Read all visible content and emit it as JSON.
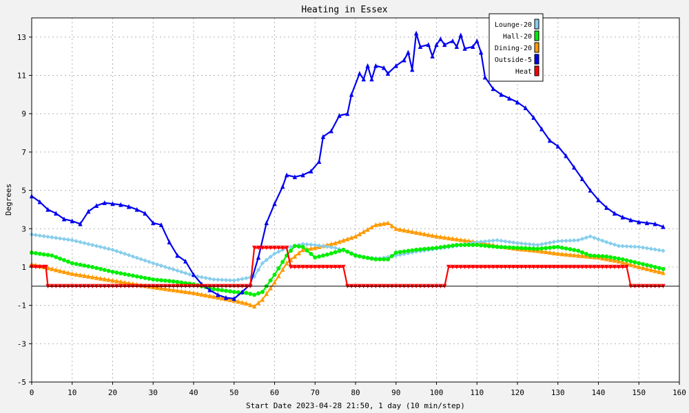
{
  "chart_data": {
    "type": "line",
    "title": "Heating in Essex",
    "xlabel": "Start Date 2023-04-28 21:50, 1 day (10 min/step)",
    "ylabel": "Degrees",
    "xlim": [
      0,
      160
    ],
    "ylim": [
      -5,
      14
    ],
    "x_ticks": [
      "0",
      "10",
      "20",
      "30",
      "40",
      "50",
      "60",
      "70",
      "80",
      "90",
      "100",
      "110",
      "120",
      "130",
      "140",
      "150",
      "160"
    ],
    "y_ticks": [
      "-5",
      "-3",
      "-1",
      "1",
      "3",
      "5",
      "7",
      "9",
      "11",
      "13"
    ],
    "grid": true,
    "legend_position": "top-right",
    "series": [
      {
        "name": "Lounge-20",
        "color": "#87ceeb",
        "marker": "diamond",
        "points": [
          [
            0,
            2.7
          ],
          [
            10,
            2.4
          ],
          [
            20,
            1.9
          ],
          [
            30,
            1.2
          ],
          [
            40,
            0.55
          ],
          [
            45,
            0.35
          ],
          [
            50,
            0.3
          ],
          [
            55,
            0.5
          ],
          [
            57,
            1.2
          ],
          [
            60,
            1.7
          ],
          [
            63,
            2.0
          ],
          [
            67,
            2.2
          ],
          [
            70,
            2.15
          ],
          [
            75,
            2.0
          ],
          [
            78,
            1.8
          ],
          [
            82,
            1.5
          ],
          [
            86,
            1.45
          ],
          [
            90,
            1.6
          ],
          [
            95,
            1.8
          ],
          [
            100,
            1.95
          ],
          [
            105,
            2.1
          ],
          [
            110,
            2.3
          ],
          [
            115,
            2.4
          ],
          [
            120,
            2.25
          ],
          [
            125,
            2.15
          ],
          [
            130,
            2.35
          ],
          [
            135,
            2.4
          ],
          [
            138,
            2.6
          ],
          [
            142,
            2.3
          ],
          [
            145,
            2.1
          ],
          [
            150,
            2.05
          ],
          [
            156,
            1.85
          ]
        ]
      },
      {
        "name": "Hall-20",
        "color": "#00ee00",
        "marker": "circle",
        "points": [
          [
            0,
            1.75
          ],
          [
            5,
            1.6
          ],
          [
            10,
            1.2
          ],
          [
            15,
            1.0
          ],
          [
            20,
            0.75
          ],
          [
            25,
            0.55
          ],
          [
            30,
            0.35
          ],
          [
            35,
            0.25
          ],
          [
            40,
            0.1
          ],
          [
            45,
            -0.15
          ],
          [
            50,
            -0.3
          ],
          [
            53,
            -0.35
          ],
          [
            55,
            -0.45
          ],
          [
            57,
            -0.3
          ],
          [
            60,
            0.6
          ],
          [
            63,
            1.6
          ],
          [
            65,
            2.1
          ],
          [
            67,
            2.05
          ],
          [
            70,
            1.5
          ],
          [
            73,
            1.65
          ],
          [
            77,
            1.9
          ],
          [
            80,
            1.6
          ],
          [
            85,
            1.4
          ],
          [
            88,
            1.4
          ],
          [
            90,
            1.75
          ],
          [
            95,
            1.9
          ],
          [
            100,
            2.0
          ],
          [
            105,
            2.15
          ],
          [
            110,
            2.15
          ],
          [
            115,
            2.05
          ],
          [
            120,
            2.0
          ],
          [
            125,
            1.95
          ],
          [
            130,
            2.05
          ],
          [
            135,
            1.85
          ],
          [
            138,
            1.6
          ],
          [
            142,
            1.55
          ],
          [
            146,
            1.4
          ],
          [
            150,
            1.2
          ],
          [
            156,
            0.9
          ]
        ]
      },
      {
        "name": "Dining-20",
        "color": "#ff9900",
        "marker": "triangle",
        "points": [
          [
            0,
            1.15
          ],
          [
            10,
            0.65
          ],
          [
            20,
            0.3
          ],
          [
            30,
            -0.05
          ],
          [
            40,
            -0.35
          ],
          [
            45,
            -0.55
          ],
          [
            50,
            -0.75
          ],
          [
            53,
            -0.9
          ],
          [
            55,
            -1.05
          ],
          [
            57,
            -0.7
          ],
          [
            60,
            0.2
          ],
          [
            63,
            1.2
          ],
          [
            67,
            1.9
          ],
          [
            70,
            2.0
          ],
          [
            75,
            2.25
          ],
          [
            80,
            2.6
          ],
          [
            85,
            3.2
          ],
          [
            88,
            3.3
          ],
          [
            90,
            3.0
          ],
          [
            95,
            2.8
          ],
          [
            100,
            2.6
          ],
          [
            105,
            2.45
          ],
          [
            110,
            2.3
          ],
          [
            115,
            2.1
          ],
          [
            120,
            1.95
          ],
          [
            125,
            1.85
          ],
          [
            130,
            1.7
          ],
          [
            135,
            1.6
          ],
          [
            140,
            1.5
          ],
          [
            145,
            1.3
          ],
          [
            150,
            1.0
          ],
          [
            156,
            0.7
          ]
        ]
      },
      {
        "name": "Outside-5",
        "color": "#0000ee",
        "marker": "triangle-up",
        "points": [
          [
            0,
            4.7
          ],
          [
            2,
            4.4
          ],
          [
            4,
            4.0
          ],
          [
            6,
            3.8
          ],
          [
            8,
            3.5
          ],
          [
            10,
            3.4
          ],
          [
            12,
            3.25
          ],
          [
            14,
            3.9
          ],
          [
            16,
            4.2
          ],
          [
            18,
            4.35
          ],
          [
            20,
            4.3
          ],
          [
            22,
            4.25
          ],
          [
            24,
            4.15
          ],
          [
            26,
            4.0
          ],
          [
            28,
            3.8
          ],
          [
            30,
            3.3
          ],
          [
            32,
            3.2
          ],
          [
            34,
            2.3
          ],
          [
            36,
            1.6
          ],
          [
            38,
            1.3
          ],
          [
            40,
            0.6
          ],
          [
            42,
            0.1
          ],
          [
            44,
            -0.2
          ],
          [
            46,
            -0.45
          ],
          [
            48,
            -0.6
          ],
          [
            50,
            -0.65
          ],
          [
            52,
            -0.3
          ],
          [
            54,
            0.1
          ],
          [
            56,
            1.5
          ],
          [
            58,
            3.3
          ],
          [
            60,
            4.3
          ],
          [
            62,
            5.2
          ],
          [
            63,
            5.8
          ],
          [
            65,
            5.7
          ],
          [
            67,
            5.8
          ],
          [
            69,
            6.0
          ],
          [
            71,
            6.5
          ],
          [
            72,
            7.8
          ],
          [
            74,
            8.1
          ],
          [
            76,
            8.9
          ],
          [
            78,
            9.0
          ],
          [
            79,
            10.0
          ],
          [
            81,
            11.1
          ],
          [
            82,
            10.8
          ],
          [
            83,
            11.5
          ],
          [
            84,
            10.8
          ],
          [
            85,
            11.5
          ],
          [
            87,
            11.4
          ],
          [
            88,
            11.1
          ],
          [
            90,
            11.5
          ],
          [
            92,
            11.8
          ],
          [
            93,
            12.2
          ],
          [
            94,
            11.3
          ],
          [
            95,
            13.2
          ],
          [
            96,
            12.5
          ],
          [
            98,
            12.6
          ],
          [
            99,
            12.0
          ],
          [
            100,
            12.6
          ],
          [
            101,
            12.9
          ],
          [
            102,
            12.6
          ],
          [
            104,
            12.8
          ],
          [
            105,
            12.5
          ],
          [
            106,
            13.1
          ],
          [
            107,
            12.4
          ],
          [
            109,
            12.5
          ],
          [
            110,
            12.8
          ],
          [
            111,
            12.2
          ],
          [
            112,
            10.9
          ],
          [
            114,
            10.3
          ],
          [
            116,
            10.0
          ],
          [
            118,
            9.8
          ],
          [
            120,
            9.6
          ],
          [
            122,
            9.3
          ],
          [
            124,
            8.8
          ],
          [
            126,
            8.2
          ],
          [
            128,
            7.6
          ],
          [
            130,
            7.3
          ],
          [
            132,
            6.8
          ],
          [
            134,
            6.2
          ],
          [
            136,
            5.6
          ],
          [
            138,
            5.0
          ],
          [
            140,
            4.5
          ],
          [
            142,
            4.1
          ],
          [
            144,
            3.8
          ],
          [
            146,
            3.6
          ],
          [
            148,
            3.45
          ],
          [
            150,
            3.35
          ],
          [
            152,
            3.3
          ],
          [
            154,
            3.25
          ],
          [
            156,
            3.1
          ]
        ]
      },
      {
        "name": "Heat",
        "color": "#ff0000",
        "marker": "triangle-down",
        "points": [
          [
            0,
            1.0
          ],
          [
            3.5,
            1.0
          ],
          [
            4,
            0.0
          ],
          [
            54,
            0.0
          ],
          [
            55,
            2.0
          ],
          [
            63,
            2.0
          ],
          [
            64,
            1.0
          ],
          [
            77,
            1.0
          ],
          [
            78,
            0.0
          ],
          [
            102,
            0.0
          ],
          [
            103,
            1.0
          ],
          [
            147,
            1.0
          ],
          [
            148,
            0.0
          ],
          [
            156,
            0.0
          ]
        ]
      }
    ]
  }
}
